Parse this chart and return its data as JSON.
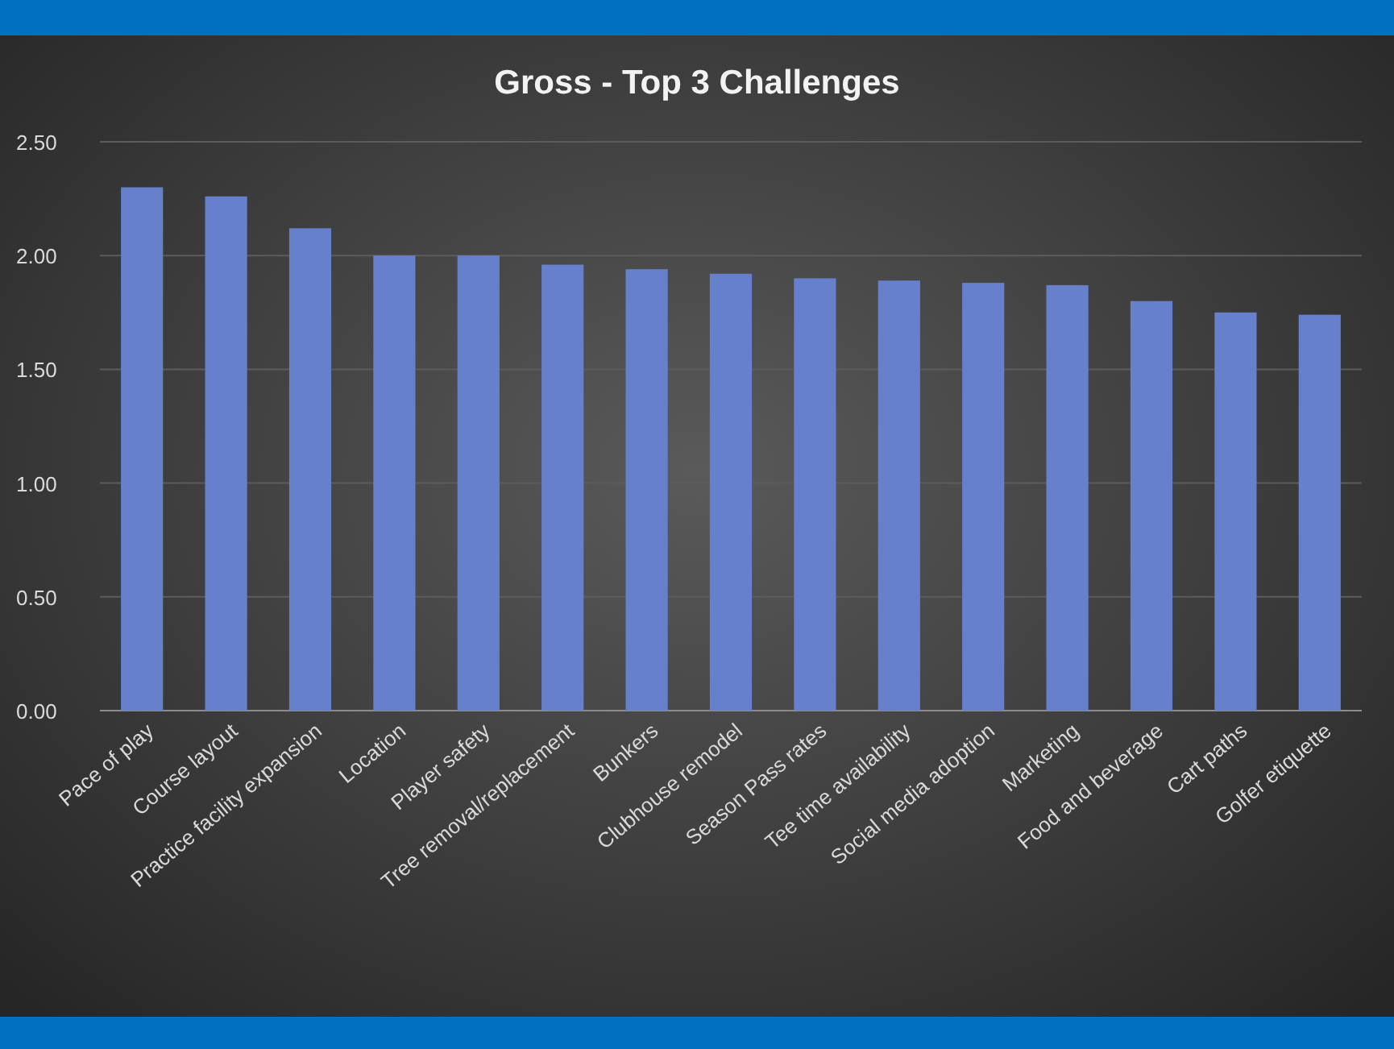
{
  "chart_data": {
    "type": "bar",
    "title": "Gross - Top 3 Challenges",
    "categories": [
      "Pace of play",
      "Course layout",
      "Practice facility expansion",
      "Location",
      "Player safety",
      "Tree removal/replacement",
      "Bunkers",
      "Clubhouse remodel",
      "Season Pass rates",
      "Tee time availability",
      "Social media adoption",
      "Marketing",
      "Food and beverage",
      "Cart paths",
      "Golfer etiquette"
    ],
    "values": [
      2.3,
      2.26,
      2.12,
      2.0,
      2.0,
      1.96,
      1.94,
      1.92,
      1.9,
      1.89,
      1.88,
      1.87,
      1.8,
      1.75,
      1.74
    ],
    "color": "#6680cc",
    "ylim": [
      0,
      2.5
    ],
    "yticks": [
      {
        "value": 0,
        "label": "0.00"
      },
      {
        "value": 0.5,
        "label": "0.50"
      },
      {
        "value": 1,
        "label": "1.00"
      },
      {
        "value": 1.5,
        "label": "1.50"
      },
      {
        "value": 2,
        "label": "2.00"
      },
      {
        "value": 2.5,
        "label": "2.50"
      }
    ],
    "grid": "y"
  }
}
